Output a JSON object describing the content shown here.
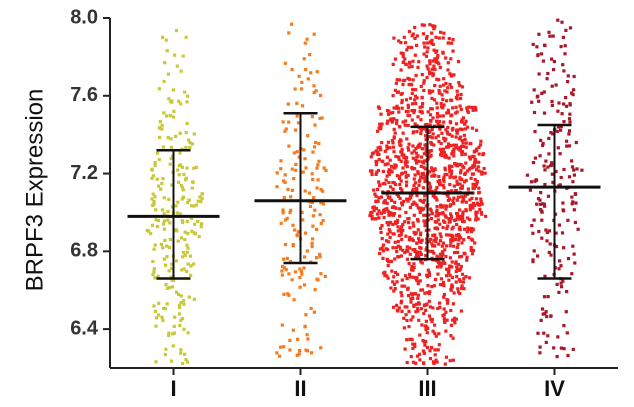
{
  "chart_data": {
    "type": "scatter",
    "ylabel": "BRPF3 Expression",
    "xlabel": "",
    "ylim": [
      6.2,
      8.0
    ],
    "yticks": [
      "6.4",
      "6.8",
      "7.2",
      "7.6",
      "8.0"
    ],
    "ytick_values": [
      6.4,
      6.8,
      7.2,
      7.6,
      8.0
    ],
    "categories": [
      "I",
      "II",
      "III",
      "IV"
    ],
    "grid": false,
    "series": [
      {
        "category": "I",
        "color": "#c8c83a",
        "mean": 6.98,
        "sd_low": 6.66,
        "sd_high": 7.32,
        "y_min": 6.22,
        "y_max": 7.97,
        "n": 240
      },
      {
        "category": "II",
        "color": "#f47b20",
        "mean": 7.06,
        "sd_low": 6.74,
        "sd_high": 7.51,
        "y_min": 6.25,
        "y_max": 7.97,
        "n": 170
      },
      {
        "category": "III",
        "color": "#ee2222",
        "mean": 7.1,
        "sd_low": 6.76,
        "sd_high": 7.44,
        "y_min": 6.22,
        "y_max": 7.97,
        "n": 1400
      },
      {
        "category": "IV",
        "color": "#a8182a",
        "mean": 7.13,
        "sd_low": 6.66,
        "sd_high": 7.45,
        "y_min": 6.24,
        "y_max": 7.99,
        "n": 210
      }
    ]
  }
}
